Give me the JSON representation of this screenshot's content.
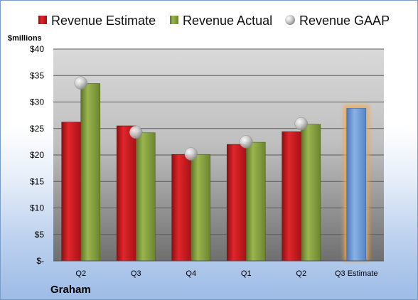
{
  "chart_data": {
    "type": "bar",
    "company": "Graham",
    "unit_label": "$millions",
    "categories": [
      "Q2",
      "Q3",
      "Q4",
      "Q1",
      "Q2",
      "Q3 Estimate"
    ],
    "y_ticks": [
      "$-",
      "$5",
      "$10",
      "$15",
      "$20",
      "$25",
      "$30",
      "$35",
      "$40"
    ],
    "ylim": [
      0,
      40
    ],
    "grid": true,
    "legend_position": "top",
    "series": [
      {
        "name": "Revenue Estimate",
        "kind": "bar",
        "color": "#c0171c",
        "values": [
          26.2,
          25.5,
          20.1,
          22.0,
          24.4,
          null
        ]
      },
      {
        "name": "Revenue Actual",
        "kind": "bar",
        "color": "#7f9a3a",
        "values": [
          33.5,
          24.2,
          20.1,
          22.4,
          25.8,
          null
        ]
      },
      {
        "name": "Revenue GAAP",
        "kind": "marker",
        "color": "#b8b8b8",
        "values": [
          33.6,
          24.3,
          20.2,
          22.5,
          25.9,
          null
        ]
      },
      {
        "name": "Q3 Estimate",
        "kind": "bar",
        "color": "#6f9bd6",
        "highlight": "#f4a64a",
        "values": [
          null,
          null,
          null,
          null,
          null,
          28.8
        ]
      }
    ]
  }
}
